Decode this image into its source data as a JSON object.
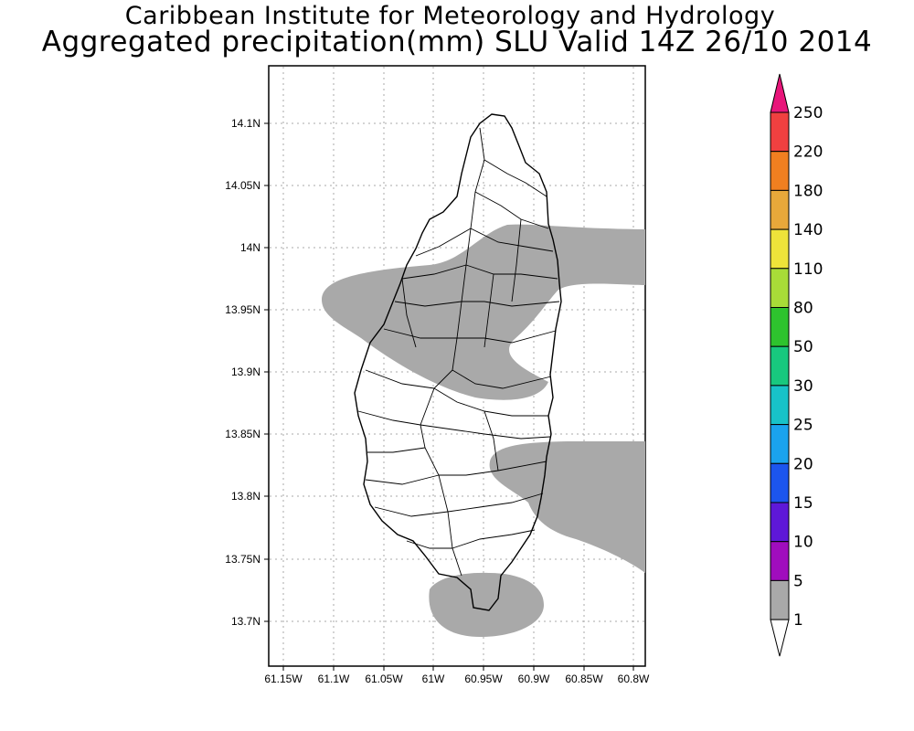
{
  "header": {
    "line1": "Caribbean Institute for Meteorology and Hydrology",
    "line2": "Aggregated precipitation(mm) SLU Valid 14Z 26/10 2014"
  },
  "map": {
    "lon_labels": [
      "61.15W",
      "61.1W",
      "61.05W",
      "61W",
      "60.95W",
      "60.9W",
      "60.85W",
      "60.8W"
    ],
    "lat_labels": [
      "14.1N",
      "14.05N",
      "14N",
      "13.95N",
      "13.9N",
      "13.85N",
      "13.8N",
      "13.75N",
      "13.7N"
    ],
    "precip_fill_color": "#a9a9a9",
    "coast_color": "#000000"
  },
  "colorbar": {
    "levels": [
      {
        "label": "250",
        "color": "#e8157a"
      },
      {
        "label": "220",
        "color": "#f04040"
      },
      {
        "label": "180",
        "color": "#f07f20"
      },
      {
        "label": "140",
        "color": "#e8a83a"
      },
      {
        "label": "110",
        "color": "#eee33a"
      },
      {
        "label": "80",
        "color": "#a8dc38"
      },
      {
        "label": "50",
        "color": "#2ec32e"
      },
      {
        "label": "30",
        "color": "#18c87e"
      },
      {
        "label": "25",
        "color": "#18c2c8"
      },
      {
        "label": "20",
        "color": "#1aa3ee"
      },
      {
        "label": "15",
        "color": "#1c55ee"
      },
      {
        "label": "10",
        "color": "#5e18d8"
      },
      {
        "label": "5",
        "color": "#a00dbd"
      },
      {
        "label": "1",
        "color": "#a9a9a9"
      }
    ],
    "bottom_color": "#ffffff"
  }
}
